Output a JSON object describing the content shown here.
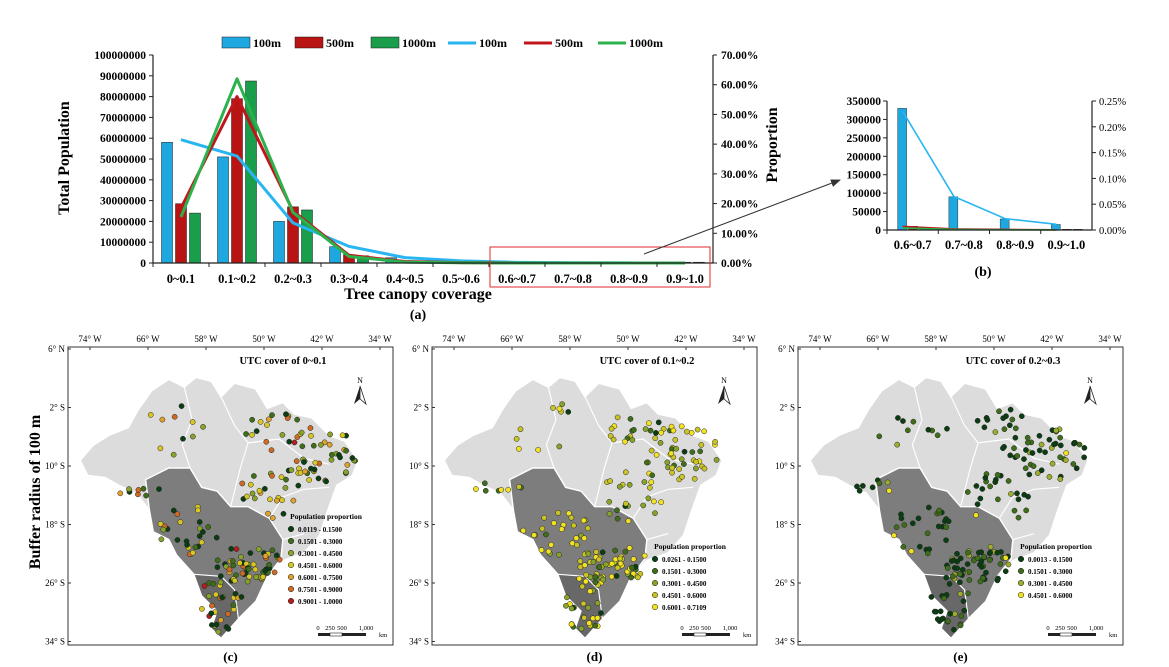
{
  "chart_data": [
    {
      "id": "a",
      "type": "bar+line",
      "panel_label": "(a)",
      "xlabel": "Tree canopy coverage",
      "ylabel": "Total Population",
      "y2label": "Proportion",
      "categories": [
        "0~0.1",
        "0.1~0.2",
        "0.2~0.3",
        "0.3~0.4",
        "0.4~0.5",
        "0.5~0.6",
        "0.6~0.7",
        "0.7~0.8",
        "0.8~0.9",
        "0.9~1.0"
      ],
      "ylim": [
        0,
        100000000
      ],
      "yticks": [
        "0",
        "10000000",
        "20000000",
        "30000000",
        "40000000",
        "50000000",
        "60000000",
        "70000000",
        "80000000",
        "90000000",
        "100000000"
      ],
      "y2lim": [
        0,
        70
      ],
      "y2ticks": [
        "0.00%",
        "10.00%",
        "20.00%",
        "30.00%",
        "40.00%",
        "50.00%",
        "60.00%",
        "70.00%"
      ],
      "bar_series": [
        {
          "name": "100m",
          "color": "#1fa7e0",
          "values": [
            58000000,
            51000000,
            20000000,
            7800000,
            2500000,
            1000000,
            330000,
            90000,
            30000,
            15000
          ]
        },
        {
          "name": "500m",
          "color": "#b81414",
          "values": [
            28500000,
            79000000,
            27000000,
            4000000,
            800000,
            200000,
            10000,
            3000,
            1000,
            500
          ]
        },
        {
          "name": "1000m",
          "color": "#1b9e4b",
          "values": [
            24000000,
            87500000,
            25500000,
            3500000,
            500000,
            100000,
            5000,
            1000,
            500,
            200
          ]
        }
      ],
      "line_series": [
        {
          "name": "100m",
          "color": "#29b6f0",
          "values": [
            41.5,
            36,
            13.5,
            5.6,
            1.8,
            0.7,
            0.23,
            0.065,
            0.022,
            0.011
          ]
        },
        {
          "name": "500m",
          "color": "#c0161b",
          "values": [
            18.5,
            56,
            17.5,
            2.6,
            0.5,
            0.13,
            0.007,
            0.002,
            0.001,
            0.0004
          ]
        },
        {
          "name": "1000m",
          "color": "#2bb24c",
          "values": [
            15.5,
            62,
            17,
            2.2,
            0.3,
            0.07,
            0.004,
            0.001,
            0.0004,
            0.0001
          ]
        }
      ],
      "legend": [
        "100m",
        "500m",
        "1000m",
        "100m",
        "500m",
        "1000m"
      ]
    },
    {
      "id": "b",
      "type": "bar+line",
      "panel_label": "(b)",
      "categories": [
        "0.6~0.7",
        "0.7~0.8",
        "0.8~0.9",
        "0.9~1.0"
      ],
      "ylim": [
        0,
        350000
      ],
      "yticks": [
        "0",
        "50000",
        "100000",
        "150000",
        "200000",
        "250000",
        "300000",
        "350000"
      ],
      "y2lim": [
        0,
        0.25
      ],
      "y2ticks": [
        "0.00%",
        "0.05%",
        "0.10%",
        "0.15%",
        "0.20%",
        "0.25%"
      ],
      "bar_series": [
        {
          "name": "100m",
          "color": "#1fa7e0",
          "values": [
            330000,
            90000,
            30000,
            15000
          ]
        },
        {
          "name": "500m",
          "color": "#b81414",
          "values": [
            10000,
            3000,
            1000,
            500
          ]
        },
        {
          "name": "1000m",
          "color": "#1b9e4b",
          "values": [
            5000,
            1000,
            500,
            200
          ]
        }
      ],
      "line_series": [
        {
          "name": "100m",
          "color": "#29b6f0",
          "values": [
            0.23,
            0.065,
            0.022,
            0.011
          ]
        },
        {
          "name": "500m",
          "color": "#c0161b",
          "values": [
            0.007,
            0.002,
            0.001,
            0.0004
          ]
        },
        {
          "name": "1000m",
          "color": "#2bb24c",
          "values": [
            0.004,
            0.001,
            0.0004,
            0.0001
          ]
        }
      ]
    }
  ],
  "maps_row_label": "Buffer radius of 100 m",
  "lon_labels": [
    "74° W",
    "66° W",
    "58° W",
    "50° W",
    "42° W",
    "34° W"
  ],
  "lat_labels": [
    "6° N",
    "2° S",
    "10° S",
    "18° S",
    "26° S",
    "34° S"
  ],
  "north_label": "N",
  "scale_labels": [
    "0",
    "250",
    "500",
    "1,000",
    "km"
  ],
  "maps": [
    {
      "panel_label": "(c)",
      "title": "UTC cover of 0~0.1",
      "legend_title": "Population proportion",
      "classes": [
        {
          "label": "0.0119 - 0.1500",
          "color": "#0b3d12"
        },
        {
          "label": "0.1501 - 0.3000",
          "color": "#3f6e1a"
        },
        {
          "label": "0.3001 - 0.4500",
          "color": "#87a32a"
        },
        {
          "label": "0.4501 - 0.6000",
          "color": "#d8c722"
        },
        {
          "label": "0.6001 - 0.7500",
          "color": "#e0a22a"
        },
        {
          "label": "0.7501 - 0.9000",
          "color": "#cf6a24"
        },
        {
          "label": "0.9001 - 1.0000",
          "color": "#b3201c"
        }
      ]
    },
    {
      "panel_label": "(d)",
      "title": "UTC cover of 0.1~0.2",
      "legend_title": "Population proportion",
      "classes": [
        {
          "label": "0.0261 - 0.1500",
          "color": "#0b3d12"
        },
        {
          "label": "0.1501 - 0.3000",
          "color": "#3f6e1a"
        },
        {
          "label": "0.3001 - 0.4500",
          "color": "#87a32a"
        },
        {
          "label": "0.4501 - 0.6000",
          "color": "#c9c425"
        },
        {
          "label": "0.6001 - 0.7109",
          "color": "#f2e21f"
        }
      ]
    },
    {
      "panel_label": "(e)",
      "title": "UTC cover of 0.2~0.3",
      "legend_title": "Population proportion",
      "classes": [
        {
          "label": "0.0013 - 0.1500",
          "color": "#0b3d12"
        },
        {
          "label": "0.1501 - 0.3000",
          "color": "#3f6e1a"
        },
        {
          "label": "0.3001 - 0.4500",
          "color": "#9cae2c"
        },
        {
          "label": "0.4501 - 0.6000",
          "color": "#f2e21f"
        }
      ]
    }
  ]
}
